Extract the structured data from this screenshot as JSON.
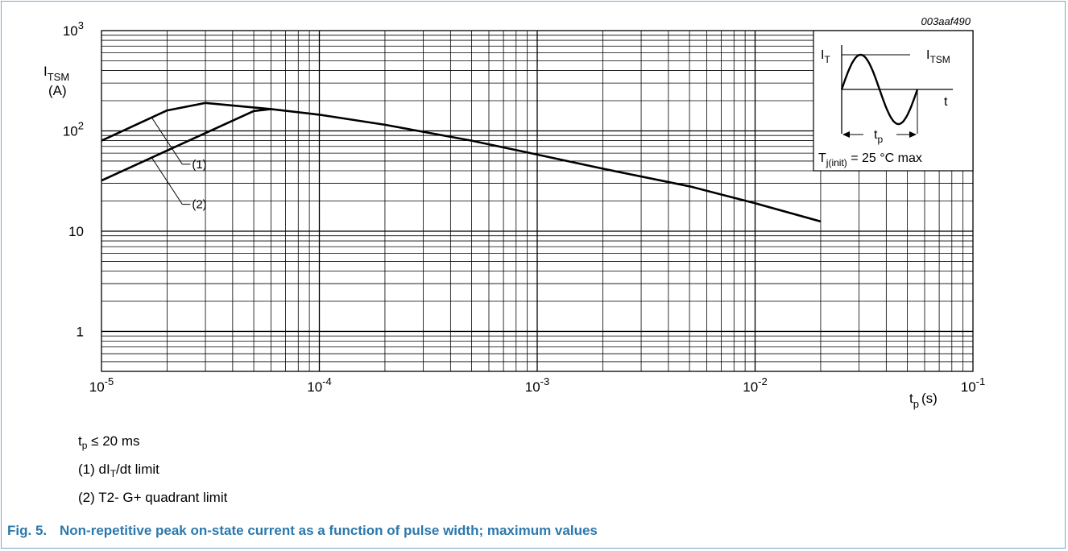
{
  "figure_id": "003aaf490",
  "chart_data": {
    "type": "line",
    "x_scale": "log",
    "y_scale": "log",
    "xlim": [
      1e-05,
      0.1
    ],
    "ylim": [
      0.4,
      1000
    ],
    "grid": true,
    "x_ticks": [
      {
        "value": 1e-05,
        "base": "10",
        "exp": "-5"
      },
      {
        "value": 0.0001,
        "base": "10",
        "exp": "-4"
      },
      {
        "value": 0.001,
        "base": "10",
        "exp": "-3"
      },
      {
        "value": 0.01,
        "base": "10",
        "exp": "-2"
      },
      {
        "value": 0.1,
        "base": "10",
        "exp": "-1"
      }
    ],
    "y_ticks": [
      {
        "value": 1000,
        "base": "10",
        "exp": "3"
      },
      {
        "value": 100,
        "base": "10",
        "exp": "2"
      },
      {
        "value": 10,
        "base": "10",
        "exp": ""
      },
      {
        "value": 1,
        "base": "1",
        "exp": ""
      }
    ],
    "ylabel": {
      "main": "I",
      "sub": "TSM",
      "unit": "(A)"
    },
    "xlabel": {
      "main": "t",
      "sub": "p",
      "unit": "(s)"
    },
    "series": [
      {
        "label": "(1)",
        "x": [
          1e-05,
          2e-05,
          3e-05,
          6e-05
        ],
        "y": [
          80,
          160,
          190,
          165
        ]
      },
      {
        "label": "(2)",
        "x": [
          1e-05,
          5e-05,
          6e-05
        ],
        "y": [
          32,
          158,
          165
        ]
      },
      {
        "x": [
          6e-05,
          0.0001,
          0.0002,
          0.0005,
          0.001,
          0.002,
          0.005,
          0.01,
          0.02
        ],
        "y": [
          165,
          145,
          115,
          80,
          58,
          42,
          28,
          19,
          12.5
        ]
      }
    ],
    "annotations": [
      {
        "text": "(1)",
        "series": 0,
        "anchor_x": 1.7e-05
      },
      {
        "text": "(2)",
        "series": 1,
        "anchor_x": 1.7e-05
      }
    ],
    "inset": {
      "i_t": {
        "main": "I",
        "sub": "T"
      },
      "i_tsm": {
        "main": "I",
        "sub": "TSM"
      },
      "t": "t",
      "tp": {
        "main": "t",
        "sub": "p"
      },
      "condition": {
        "pre": "T",
        "sub": "j(init)",
        "post": " = 25 °C max"
      }
    }
  },
  "notes": {
    "tp_limit": {
      "main": "t",
      "sub": "p",
      "rest": " ≤ 20 ms"
    },
    "note1": {
      "pre": "(1) dI",
      "sub": "T",
      "post": "/dt limit"
    },
    "note2": "(2) T2- G+ quadrant limit"
  },
  "caption": {
    "number": "Fig. 5.",
    "text": "Non-repetitive peak on-state current as a function of pulse width; maximum values"
  },
  "colors": {
    "frame": "#79a7c8",
    "caption": "#2b78ad",
    "line": "#000000",
    "grid": "#000000"
  }
}
